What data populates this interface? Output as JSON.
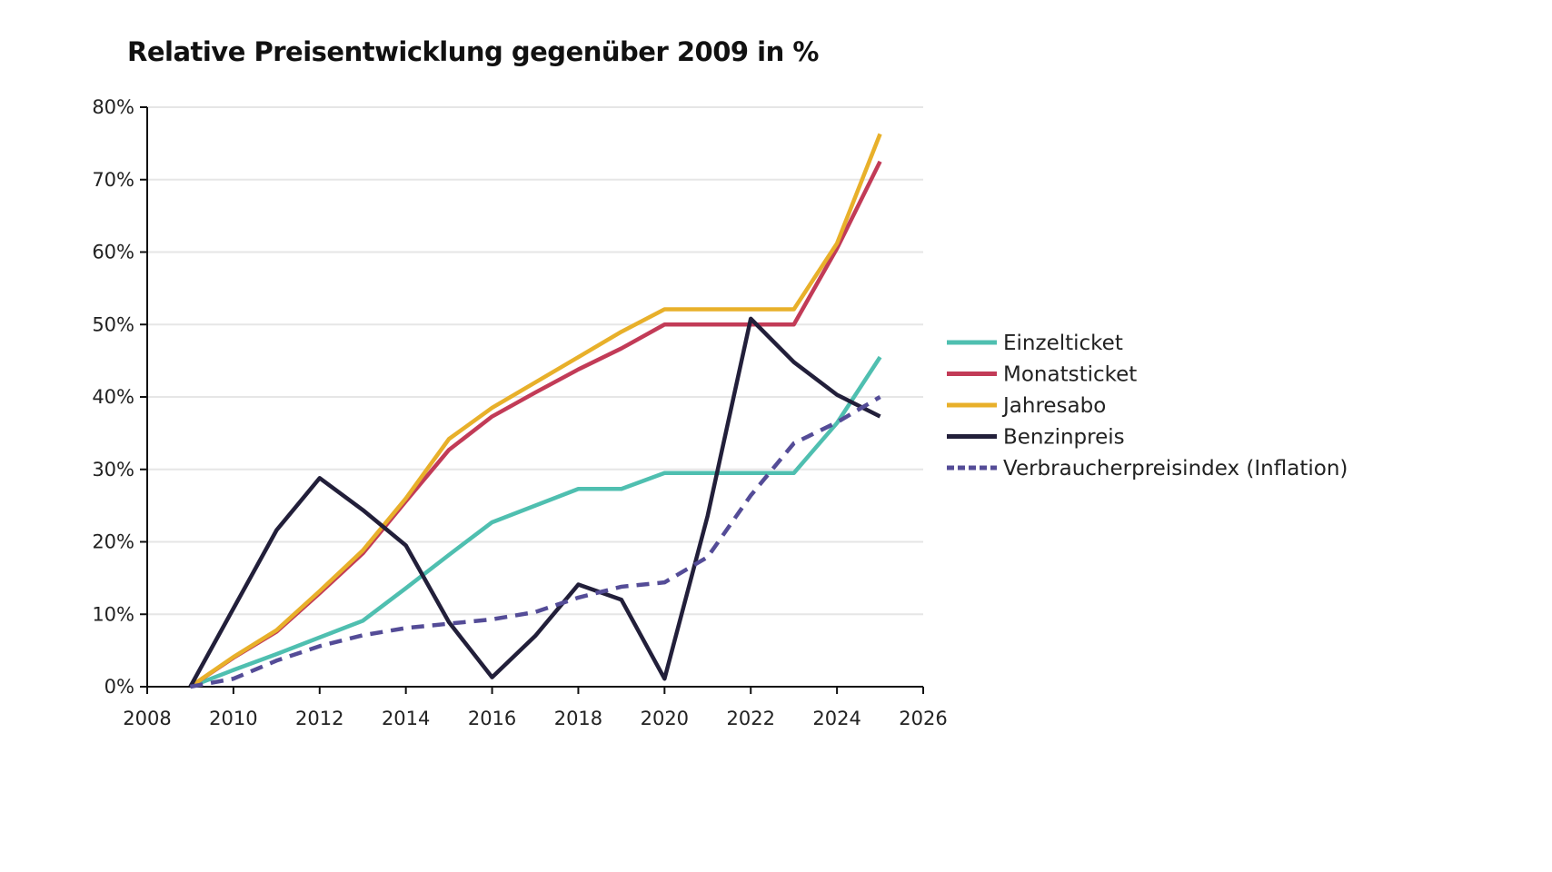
{
  "chart_data": {
    "type": "line",
    "title": "Relative Preisentwicklung gegenüber 2009 in %",
    "xlabel": "",
    "ylabel": "",
    "xlim": [
      2008,
      2026
    ],
    "ylim": [
      0,
      80
    ],
    "x_ticks": [
      "2008",
      "2010",
      "2012",
      "2014",
      "2016",
      "2018",
      "2020",
      "2022",
      "2024",
      "2026"
    ],
    "y_ticks": [
      "0%",
      "10%",
      "20%",
      "30%",
      "40%",
      "50%",
      "60%",
      "70%",
      "80%"
    ],
    "grid": "horizontal",
    "legend_position": "right",
    "x": [
      2009,
      2010,
      2011,
      2012,
      2013,
      2014,
      2015,
      2016,
      2017,
      2018,
      2019,
      2020,
      2021,
      2022,
      2023,
      2024,
      2025
    ],
    "series": [
      {
        "name": "Einzelticket",
        "color": "#4fbfb0",
        "dashed": false,
        "values": [
          0,
          2.3,
          4.5,
          6.8,
          9.1,
          13.6,
          18.2,
          22.7,
          25.0,
          27.3,
          27.3,
          29.5,
          29.5,
          29.5,
          29.5,
          36.4,
          45.5
        ]
      },
      {
        "name": "Monatsticket",
        "color": "#c23b57",
        "dashed": false,
        "values": [
          0,
          4.0,
          7.6,
          12.9,
          18.4,
          25.6,
          32.7,
          37.3,
          40.6,
          43.8,
          46.7,
          50.0,
          50.0,
          50.0,
          50.0,
          60.5,
          72.5
        ]
      },
      {
        "name": "Jahresabo",
        "color": "#e8b02a",
        "dashed": false,
        "values": [
          0,
          4.1,
          7.8,
          13.2,
          18.8,
          26.0,
          34.2,
          38.5,
          42.0,
          45.5,
          49.0,
          52.1,
          52.1,
          52.1,
          52.1,
          61.2,
          76.3
        ]
      },
      {
        "name": "Benzinpreis",
        "color": "#221f3a",
        "dashed": false,
        "values": [
          0,
          10.8,
          21.6,
          28.8,
          24.4,
          19.5,
          8.9,
          1.3,
          7.0,
          14.1,
          12.0,
          1.1,
          23.6,
          50.8,
          44.8,
          40.3,
          37.3
        ]
      },
      {
        "name": "Verbraucherpreisindex (Inflation)",
        "color": "#544c97",
        "dashed": true,
        "values": [
          0,
          1.1,
          3.6,
          5.6,
          7.1,
          8.1,
          8.7,
          9.3,
          10.3,
          12.3,
          13.8,
          14.4,
          17.9,
          26.4,
          33.6,
          36.5,
          40.0
        ]
      }
    ]
  }
}
